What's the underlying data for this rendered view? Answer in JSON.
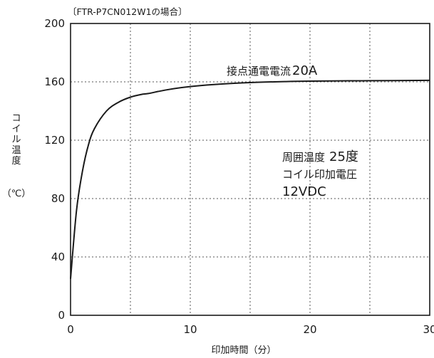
{
  "chart_data": {
    "type": "line",
    "subtitle": "〔FTR-P7CN012W1の場合〕",
    "xlabel": "印加時間（分）",
    "ylabel_chars": [
      "コ",
      "イ",
      "ル",
      "温",
      "度"
    ],
    "ylabel_unit": "（℃）",
    "xlim": [
      0,
      30
    ],
    "ylim": [
      0,
      200
    ],
    "x_ticks": [
      0,
      10,
      20,
      30
    ],
    "y_ticks": [
      0,
      40,
      80,
      120,
      160,
      200
    ],
    "x_tick_labels": [
      "0",
      "10",
      "20",
      "30"
    ],
    "y_tick_labels": [
      "0",
      "40",
      "80",
      "120",
      "160",
      "200"
    ],
    "grid": true,
    "grid_x": [
      5,
      10,
      15,
      20,
      25
    ],
    "grid_y": [
      40,
      80,
      120,
      160
    ],
    "series": [
      {
        "x": [
          0,
          0.5,
          1,
          1.5,
          2,
          3,
          4,
          5,
          6,
          6.5,
          8,
          10,
          12,
          15,
          18,
          20,
          25,
          30
        ],
        "y": [
          25,
          72,
          99,
          117,
          128,
          140,
          146,
          149.5,
          151.5,
          152,
          154.5,
          156.8,
          158.2,
          159.5,
          160.2,
          160.5,
          160.8,
          161
        ]
      }
    ],
    "annotations": {
      "current_label": "接点通電電流",
      "current_value": "20A",
      "ambient_label": "周囲温度",
      "ambient_value": "25度",
      "coil_voltage_label": "コイル印加電圧",
      "coil_voltage_value": "12VDC"
    }
  }
}
